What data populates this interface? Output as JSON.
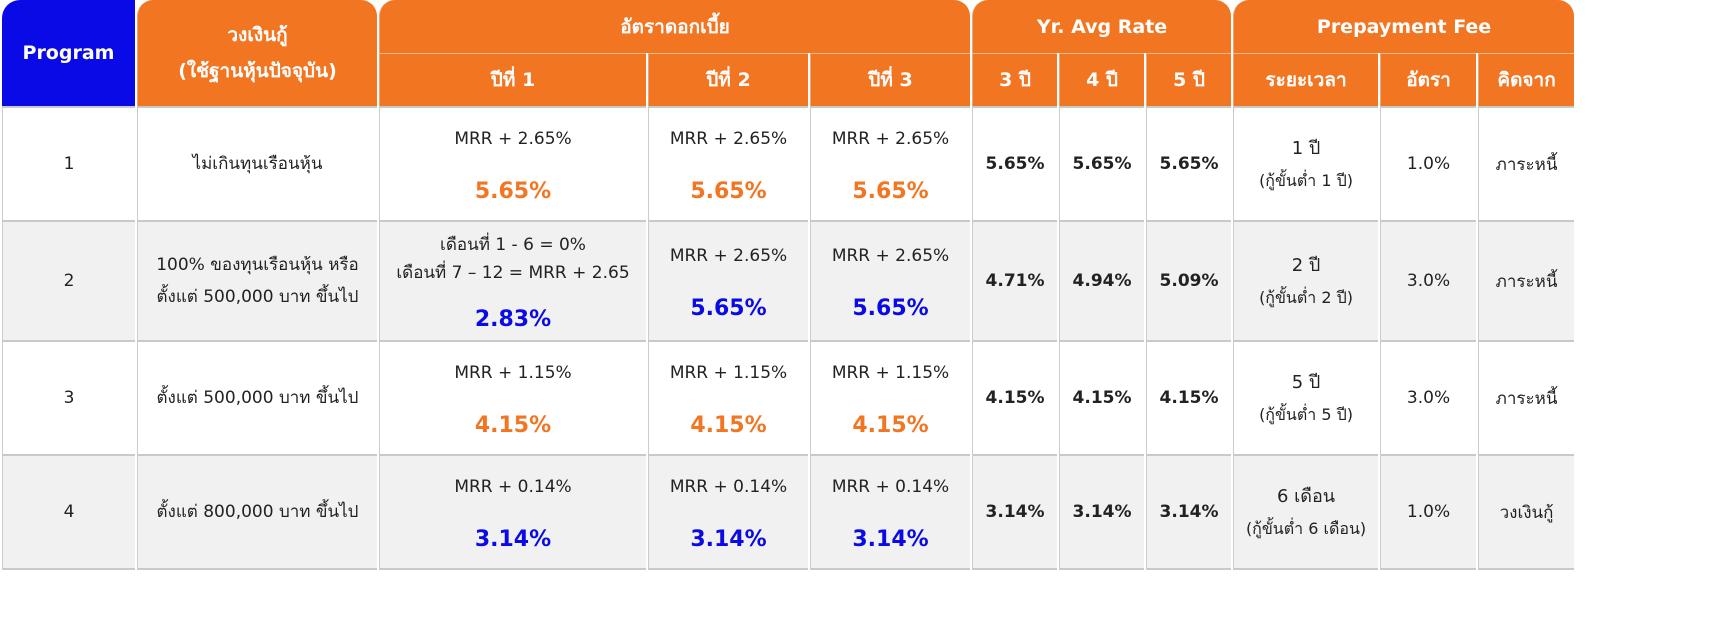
{
  "header": {
    "program": "Program",
    "limit_line1": "วงเงินกู้",
    "limit_line2": "(ใช้ฐานหุ้นปัจจุบัน)",
    "interest": "อัตราดอกเบี้ย",
    "avg": "Yr. Avg Rate",
    "prepay": "Prepayment Fee",
    "year1": "ปีที่ 1",
    "year2": "ปีที่ 2",
    "year3": "ปีที่ 3",
    "avg3": "3 ปี",
    "avg4": "4 ปี",
    "avg5": "5 ปี",
    "period": "ระยะเวลา",
    "rate": "อัตรา",
    "basis": "คิดจาก"
  },
  "rows": [
    {
      "program": "1",
      "limit_line1": "ไม่เกินทุนเรือนหุ้น",
      "limit_line2": "",
      "y1_formula": "MRR + 2.65%",
      "y1_formula2": "",
      "y1_rate": "5.65%",
      "y2_formula": "MRR + 2.65%",
      "y2_rate": "5.65%",
      "y3_formula": "MRR + 2.65%",
      "y3_rate": "5.65%",
      "avg3": "5.65%",
      "avg4": "5.65%",
      "avg5": "5.65%",
      "period": "1 ปี",
      "period_sub": "(กู้ขั้นต่ำ 1 ปี)",
      "rate": "1.0%",
      "basis": "ภาระหนี้"
    },
    {
      "program": "2",
      "limit_line1": "100% ของทุนเรือนหุ้น หรือ",
      "limit_line2": "ตั้งแต่ 500,000 บาท ขึ้นไป",
      "y1_formula": "เดือนที่ 1 - 6 = 0%",
      "y1_formula2": "เดือนที่ 7 – 12 = MRR + 2.65",
      "y1_rate": "2.83%",
      "y2_formula": "MRR + 2.65%",
      "y2_rate": "5.65%",
      "y3_formula": "MRR + 2.65%",
      "y3_rate": "5.65%",
      "avg3": "4.71%",
      "avg4": "4.94%",
      "avg5": "5.09%",
      "period": "2 ปี",
      "period_sub": "(กู้ขั้นต่ำ 2 ปี)",
      "rate": "3.0%",
      "basis": "ภาระหนี้"
    },
    {
      "program": "3",
      "limit_line1": "ตั้งแต่ 500,000 บาท ขึ้นไป",
      "limit_line2": "",
      "y1_formula": "MRR + 1.15%",
      "y1_formula2": "",
      "y1_rate": "4.15%",
      "y2_formula": "MRR + 1.15%",
      "y2_rate": "4.15%",
      "y3_formula": "MRR + 1.15%",
      "y3_rate": "4.15%",
      "avg3": "4.15%",
      "avg4": "4.15%",
      "avg5": "4.15%",
      "period": "5 ปี",
      "period_sub": "(กู้ขั้นต่ำ 5 ปี)",
      "rate": "3.0%",
      "basis": "ภาระหนี้"
    },
    {
      "program": "4",
      "limit_line1": "ตั้งแต่ 800,000 บาท ขึ้นไป",
      "limit_line2": "",
      "y1_formula": "MRR + 0.14%",
      "y1_formula2": "",
      "y1_rate": "3.14%",
      "y2_formula": "MRR + 0.14%",
      "y2_rate": "3.14%",
      "y3_formula": "MRR + 0.14%",
      "y3_rate": "3.14%",
      "avg3": "3.14%",
      "avg4": "3.14%",
      "avg5": "3.14%",
      "period": "6 เดือน",
      "period_sub": "(กู้ขั้นต่ำ 6 เดือน)",
      "rate": "1.0%",
      "basis": "วงเงินกู้"
    }
  ],
  "colors": {
    "header_orange": "#f27522",
    "program_blue": "#0a0ae6",
    "rate_orange": "#f27522",
    "rate_blue": "#0a0ae6",
    "avg5_dark_orange": "#d95a00"
  }
}
